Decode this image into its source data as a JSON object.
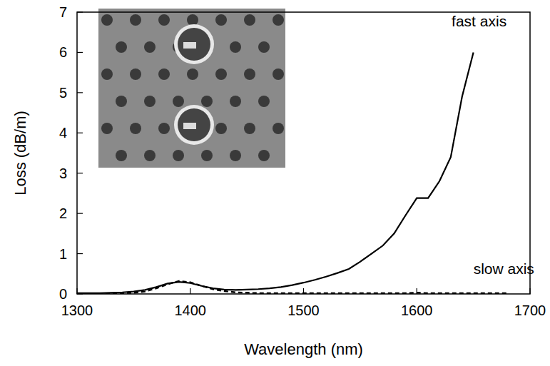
{
  "chart_data": {
    "type": "line",
    "x_label": "Wavelength  (nm)",
    "y_label": "Loss  (dB/m)",
    "x": [
      1300,
      1310,
      1320,
      1330,
      1340,
      1350,
      1360,
      1370,
      1380,
      1390,
      1400,
      1410,
      1420,
      1430,
      1440,
      1450,
      1460,
      1470,
      1480,
      1490,
      1500,
      1510,
      1520,
      1530,
      1540,
      1550,
      1560,
      1570,
      1580,
      1590,
      1600,
      1610,
      1620,
      1630,
      1640,
      1650,
      1660,
      1670,
      1680,
      1690,
      1700
    ],
    "series": [
      {
        "name": "fast axis",
        "color": "#000000",
        "line_style": "solid",
        "values": [
          0.02,
          0.02,
          0.02,
          0.03,
          0.04,
          0.06,
          0.1,
          0.17,
          0.26,
          0.3,
          0.27,
          0.2,
          0.14,
          0.11,
          0.1,
          0.11,
          0.12,
          0.14,
          0.17,
          0.22,
          0.28,
          0.35,
          0.43,
          0.52,
          0.62,
          0.8,
          1.0,
          1.2,
          1.5,
          1.95,
          2.38,
          2.38,
          2.8,
          3.4,
          4.9,
          6.0,
          null,
          null,
          null,
          null,
          null
        ]
      },
      {
        "name": "slow axis",
        "color": "#000000",
        "line_style": "dashed",
        "values": [
          0.0,
          0.0,
          0.01,
          0.01,
          0.02,
          0.03,
          0.06,
          0.14,
          0.24,
          0.32,
          0.29,
          0.2,
          0.12,
          0.07,
          0.04,
          0.03,
          0.02,
          0.02,
          0.02,
          0.02,
          0.02,
          0.02,
          0.02,
          0.02,
          0.02,
          0.02,
          0.02,
          0.02,
          0.02,
          0.02,
          0.03,
          0.02,
          0.02,
          0.02,
          0.02,
          0.02,
          0.02,
          0.02,
          0.02,
          null,
          null
        ]
      }
    ],
    "xlim": [
      1300,
      1700
    ],
    "xticks": [
      1300,
      1400,
      1500,
      1600,
      1700
    ],
    "ylim": [
      0,
      7
    ],
    "yticks": [
      0,
      1,
      2,
      3,
      4,
      5,
      6,
      7
    ],
    "grid": false
  }
}
